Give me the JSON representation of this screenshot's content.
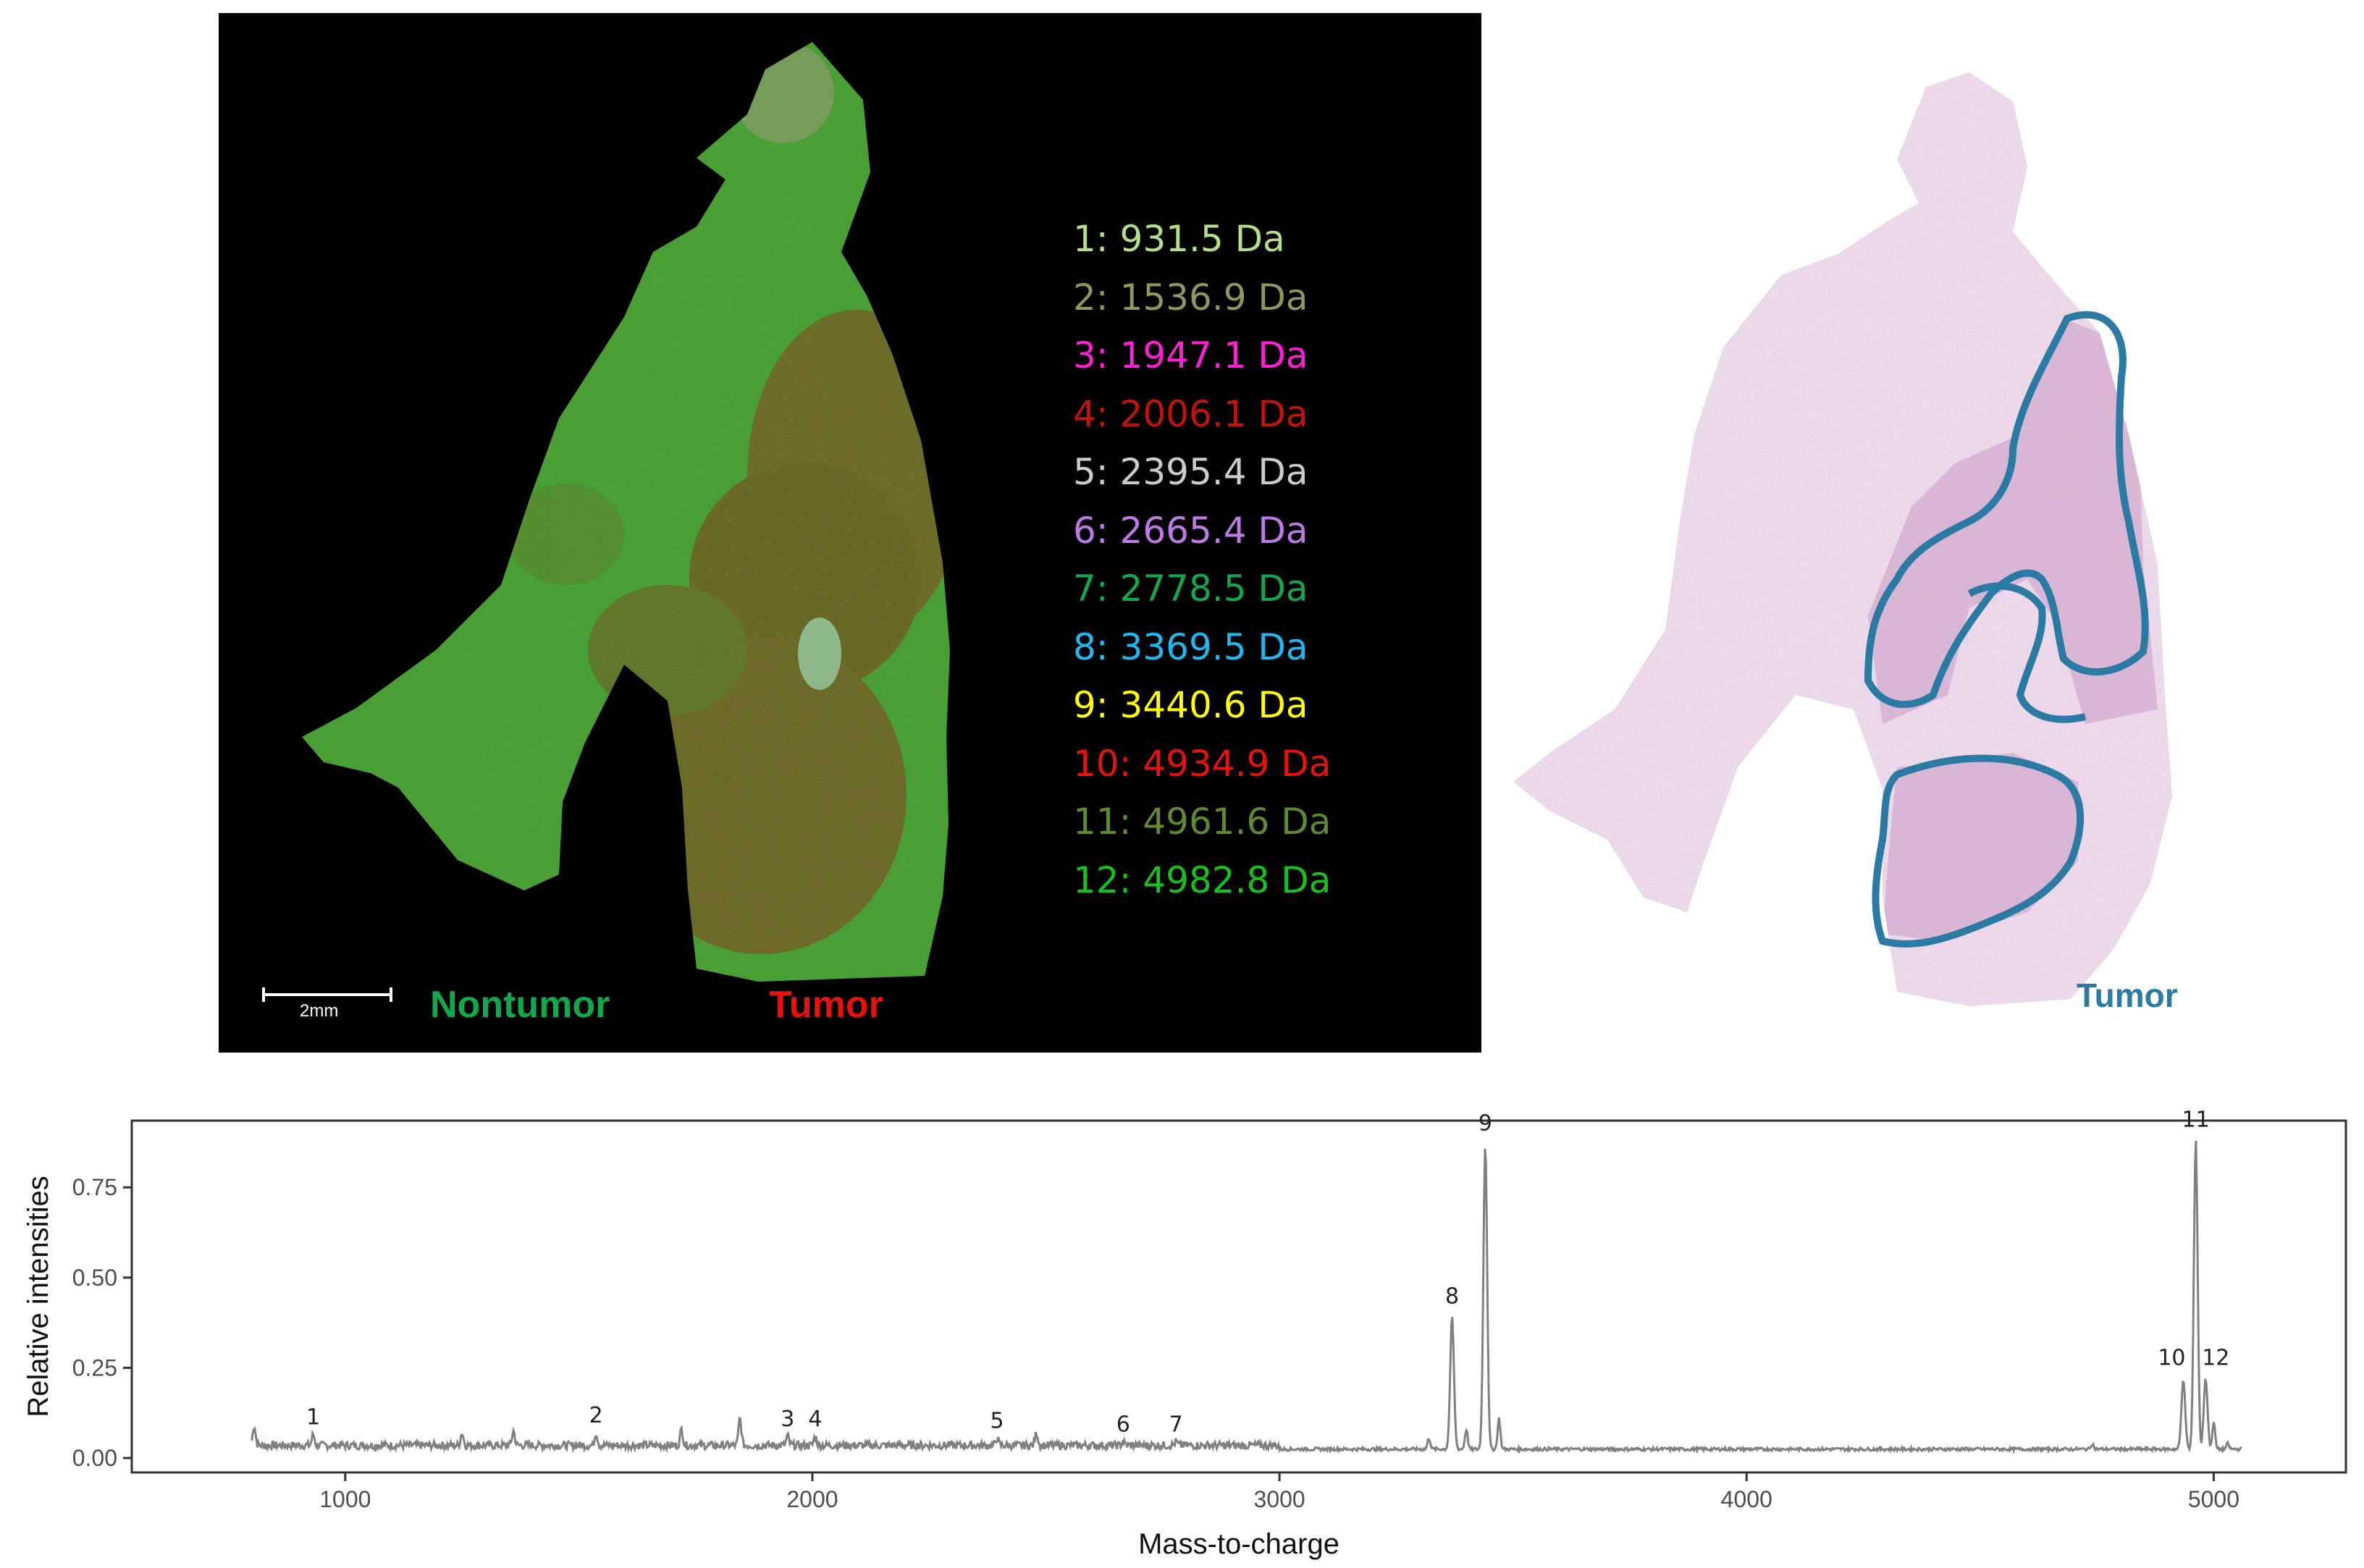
{
  "ims_panel": {
    "legend": [
      {
        "number": "1",
        "mass": "931.5 Da",
        "text": "1: 931.5 Da",
        "color": "#b5e08a"
      },
      {
        "number": "2",
        "mass": "1536.9 Da",
        "text": "2: 1536.9 Da",
        "color": "#8a9a5b"
      },
      {
        "number": "3",
        "mass": "1947.1 Da",
        "text": "3: 1947.1 Da",
        "color": "#ff1fd6"
      },
      {
        "number": "4",
        "mass": "2006.1 Da",
        "text": "4: 2006.1 Da",
        "color": "#c0140c"
      },
      {
        "number": "5",
        "mass": "2395.4 Da",
        "text": "5: 2395.4 Da",
        "color": "#cccccc"
      },
      {
        "number": "6",
        "mass": "2665.4 Da",
        "text": "6: 2665.4 Da",
        "color": "#c07ae6"
      },
      {
        "number": "7",
        "mass": "2778.5 Da",
        "text": "7: 2778.5 Da",
        "color": "#12a84e"
      },
      {
        "number": "8",
        "mass": "3369.5 Da",
        "text": "8: 3369.5 Da",
        "color": "#1fb8f0"
      },
      {
        "number": "9",
        "mass": "3440.6 Da",
        "text": "9: 3440.6 Da",
        "color": "#ffff00"
      },
      {
        "number": "10",
        "mass": "4934.9 Da",
        "text": "10: 4934.9 Da",
        "color": "#e8120c"
      },
      {
        "number": "11",
        "mass": "4961.6 Da",
        "text": "11: 4961.6 Da",
        "color": "#5f8a2e"
      },
      {
        "number": "12",
        "mass": "4982.8 Da",
        "text": "12: 4982.8 Da",
        "color": "#16c21e"
      }
    ],
    "scale_bar_label": "2mm",
    "label_nontumor": "Nontumor",
    "label_tumor": "Tumor",
    "nontumor_color": "#12a84e",
    "tumor_color": "#e8120c"
  },
  "he_panel": {
    "label_tumor": "Tumor",
    "outline_color": "#2a7aa3"
  },
  "chart_data": {
    "type": "line",
    "xlabel": "Mass-to-charge",
    "ylabel": "Relative intensities",
    "xlim": [
      800,
      5060
    ],
    "ylim": [
      0,
      0.9
    ],
    "x_ticks": [
      "1000",
      "2000",
      "3000",
      "4000",
      "5000"
    ],
    "y_ticks": [
      "0.00",
      "0.25",
      "0.50",
      "0.75"
    ],
    "grid": false,
    "line_color": "#808080",
    "baseline": 0.035,
    "peaks": [
      {
        "label": "1",
        "mz": 931.5,
        "intensity": 0.065
      },
      {
        "label": "2",
        "mz": 1536.9,
        "intensity": 0.07
      },
      {
        "label": "3",
        "mz": 1947.1,
        "intensity": 0.06
      },
      {
        "label": "4",
        "mz": 2006.1,
        "intensity": 0.06
      },
      {
        "label": "5",
        "mz": 2395.4,
        "intensity": 0.055
      },
      {
        "label": "6",
        "mz": 2665.4,
        "intensity": 0.045
      },
      {
        "label": "7",
        "mz": 2778.5,
        "intensity": 0.045
      },
      {
        "label": "8",
        "mz": 3369.5,
        "intensity": 0.4
      },
      {
        "label": "9",
        "mz": 3440.6,
        "intensity": 0.88
      },
      {
        "label": "10",
        "mz": 4934.9,
        "intensity": 0.23
      },
      {
        "label": "11",
        "mz": 4961.6,
        "intensity": 0.89
      },
      {
        "label": "12",
        "mz": 4982.8,
        "intensity": 0.23
      }
    ],
    "minor_peaks": [
      {
        "mz": 805,
        "intensity": 0.09
      },
      {
        "mz": 1845,
        "intensity": 0.11
      },
      {
        "mz": 1250,
        "intensity": 0.07
      },
      {
        "mz": 1360,
        "intensity": 0.075
      },
      {
        "mz": 1720,
        "intensity": 0.08
      },
      {
        "mz": 2480,
        "intensity": 0.07
      },
      {
        "mz": 3320,
        "intensity": 0.065
      },
      {
        "mz": 3400,
        "intensity": 0.09
      },
      {
        "mz": 3470,
        "intensity": 0.12
      },
      {
        "mz": 4740,
        "intensity": 0.05
      },
      {
        "mz": 5000,
        "intensity": 0.11
      },
      {
        "mz": 5030,
        "intensity": 0.05
      }
    ]
  }
}
